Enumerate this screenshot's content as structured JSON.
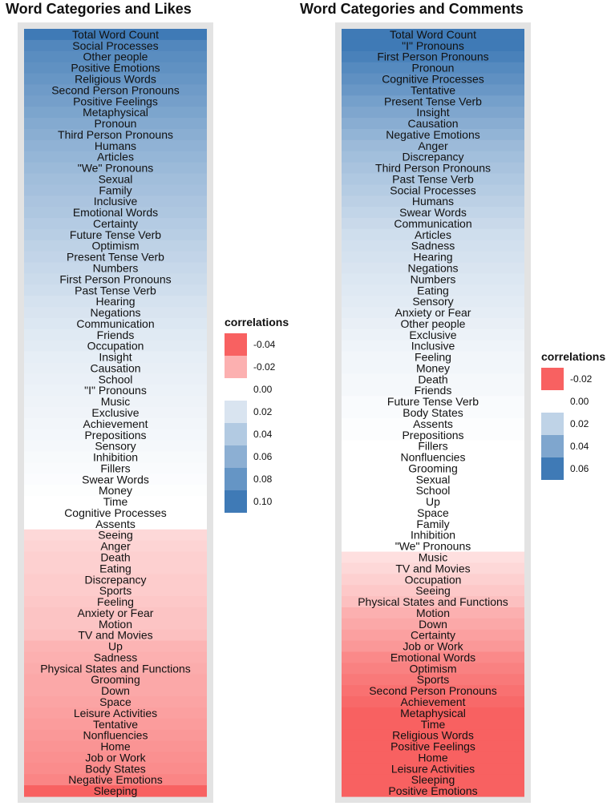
{
  "chart_data": [
    {
      "type": "heatmap",
      "title": "Word Categories and Likes",
      "categories": [
        "Total Word Count",
        "Social Processes",
        "Other people",
        "Positive Emotions",
        "Religious Words",
        "Second Person Pronouns",
        "Positive Feelings",
        "Metaphysical",
        "Pronoun",
        "Third Person Pronouns",
        "Humans",
        "Articles",
        "\"We\" Pronouns",
        "Sexual",
        "Family",
        "Inclusive",
        "Emotional Words",
        "Certainty",
        "Future Tense Verb",
        "Optimism",
        "Present Tense Verb",
        "Numbers",
        "First Person Pronouns",
        "Past Tense Verb",
        "Hearing",
        "Negations",
        "Communication",
        "Friends",
        "Occupation",
        "Insight",
        "Causation",
        "School",
        "\"I\" Pronouns",
        "Music",
        "Exclusive",
        "Achievement",
        "Prepositions",
        "Sensory",
        "Inhibition",
        "Fillers",
        "Swear Words",
        "Money",
        "Time",
        "Cognitive Processes",
        "Assents",
        "Seeing",
        "Anger",
        "Death",
        "Eating",
        "Discrepancy",
        "Sports",
        "Feeling",
        "Anxiety or Fear",
        "Motion",
        "TV and Movies",
        "Up",
        "Sadness",
        "Physical States and Functions",
        "Grooming",
        "Down",
        "Space",
        "Leisure Activities",
        "Tentative",
        "Nonfluencies",
        "Home",
        "Job or Work",
        "Body States",
        "Negative Emotions",
        "Sleeping"
      ],
      "values": [
        0.11,
        0.09,
        0.086,
        0.083,
        0.079,
        0.075,
        0.072,
        0.068,
        0.064,
        0.061,
        0.058,
        0.055,
        0.052,
        0.049,
        0.047,
        0.044,
        0.042,
        0.039,
        0.037,
        0.034,
        0.032,
        0.029,
        0.027,
        0.025,
        0.022,
        0.02,
        0.018,
        0.016,
        0.015,
        0.013,
        0.012,
        0.011,
        0.01,
        0.009,
        0.008,
        0.007,
        0.006,
        0.005,
        0.004,
        0.003,
        0.002,
        0.001,
        0.0,
        0.0,
        0.0,
        -0.01,
        -0.011,
        -0.012,
        -0.012,
        -0.013,
        -0.013,
        -0.014,
        -0.015,
        -0.015,
        -0.016,
        -0.019,
        -0.02,
        -0.021,
        -0.022,
        -0.022,
        -0.023,
        -0.024,
        -0.025,
        -0.026,
        -0.027,
        -0.028,
        -0.029,
        -0.031,
        -0.04
      ],
      "legend": {
        "title": "correlations",
        "placement": "right",
        "ticks": [
          "-0.04",
          "-0.02",
          "0.00",
          "0.02",
          "0.04",
          "0.06",
          "0.08",
          "0.10"
        ],
        "tick_values": [
          -0.04,
          -0.02,
          0,
          0.02,
          0.04,
          0.06,
          0.08,
          0.1
        ]
      }
    },
    {
      "type": "heatmap",
      "title": "Word Categories and Comments",
      "categories": [
        "Total Word Count",
        "\"I\" Pronouns",
        "First Person Pronouns",
        "Pronoun",
        "Cognitive Processes",
        "Tentative",
        "Present Tense Verb",
        "Insight",
        "Causation",
        "Negative Emotions",
        "Anger",
        "Discrepancy",
        "Third Person Pronouns",
        "Past Tense Verb",
        "Social Processes",
        "Humans",
        "Swear Words",
        "Communication",
        "Articles",
        "Sadness",
        "Hearing",
        "Negations",
        "Numbers",
        "Eating",
        "Sensory",
        "Anxiety or Fear",
        "Other people",
        "Exclusive",
        "Inclusive",
        "Feeling",
        "Money",
        "Death",
        "Friends",
        "Future Tense Verb",
        "Body States",
        "Assents",
        "Prepositions",
        "Fillers",
        "Nonfluencies",
        "Grooming",
        "Sexual",
        "School",
        "Up",
        "Space",
        "Family",
        "Inhibition",
        "\"We\" Pronouns",
        "Music",
        "TV and Movies",
        "Occupation",
        "Seeing",
        "Physical States and Functions",
        "Motion",
        "Down",
        "Certainty",
        "Job or Work",
        "Emotional Words",
        "Optimism",
        "Sports",
        "Second Person Pronouns",
        "Achievement",
        "Metaphysical",
        "Time",
        "Religious Words",
        "Positive Feelings",
        "Home",
        "Leisure Activities",
        "Sleeping",
        "Positive Emotions"
      ],
      "values": [
        0.065,
        0.06,
        0.057,
        0.053,
        0.05,
        0.047,
        0.043,
        0.04,
        0.037,
        0.034,
        0.031,
        0.029,
        0.027,
        0.025,
        0.023,
        0.021,
        0.019,
        0.017,
        0.015,
        0.014,
        0.013,
        0.012,
        0.011,
        0.01,
        0.009,
        0.008,
        0.007,
        0.006,
        0.005,
        0.004,
        0.004,
        0.003,
        0.003,
        0.002,
        0.002,
        0.001,
        0.001,
        0.0,
        0.0,
        0.0,
        0.0,
        0.0,
        0.0,
        0.0,
        0.0,
        0.0,
        0.0,
        -0.004,
        -0.005,
        -0.006,
        -0.007,
        -0.008,
        -0.01,
        -0.011,
        -0.012,
        -0.013,
        -0.015,
        -0.016,
        -0.017,
        -0.018,
        -0.019,
        -0.02,
        -0.022,
        -0.023,
        -0.024,
        -0.025,
        -0.026,
        -0.032,
        -0.034
      ],
      "legend": {
        "title": "correlations",
        "placement": "right",
        "ticks": [
          "-0.02",
          "0.00",
          "0.02",
          "0.04",
          "0.06"
        ],
        "tick_values": [
          -0.02,
          0,
          0.02,
          0.04,
          0.06
        ]
      }
    }
  ],
  "colors": {
    "negative": "#f86161",
    "neutral": "#ffffff",
    "positive": "#3f7ab6",
    "panel_bg": "#e3e3e3"
  }
}
